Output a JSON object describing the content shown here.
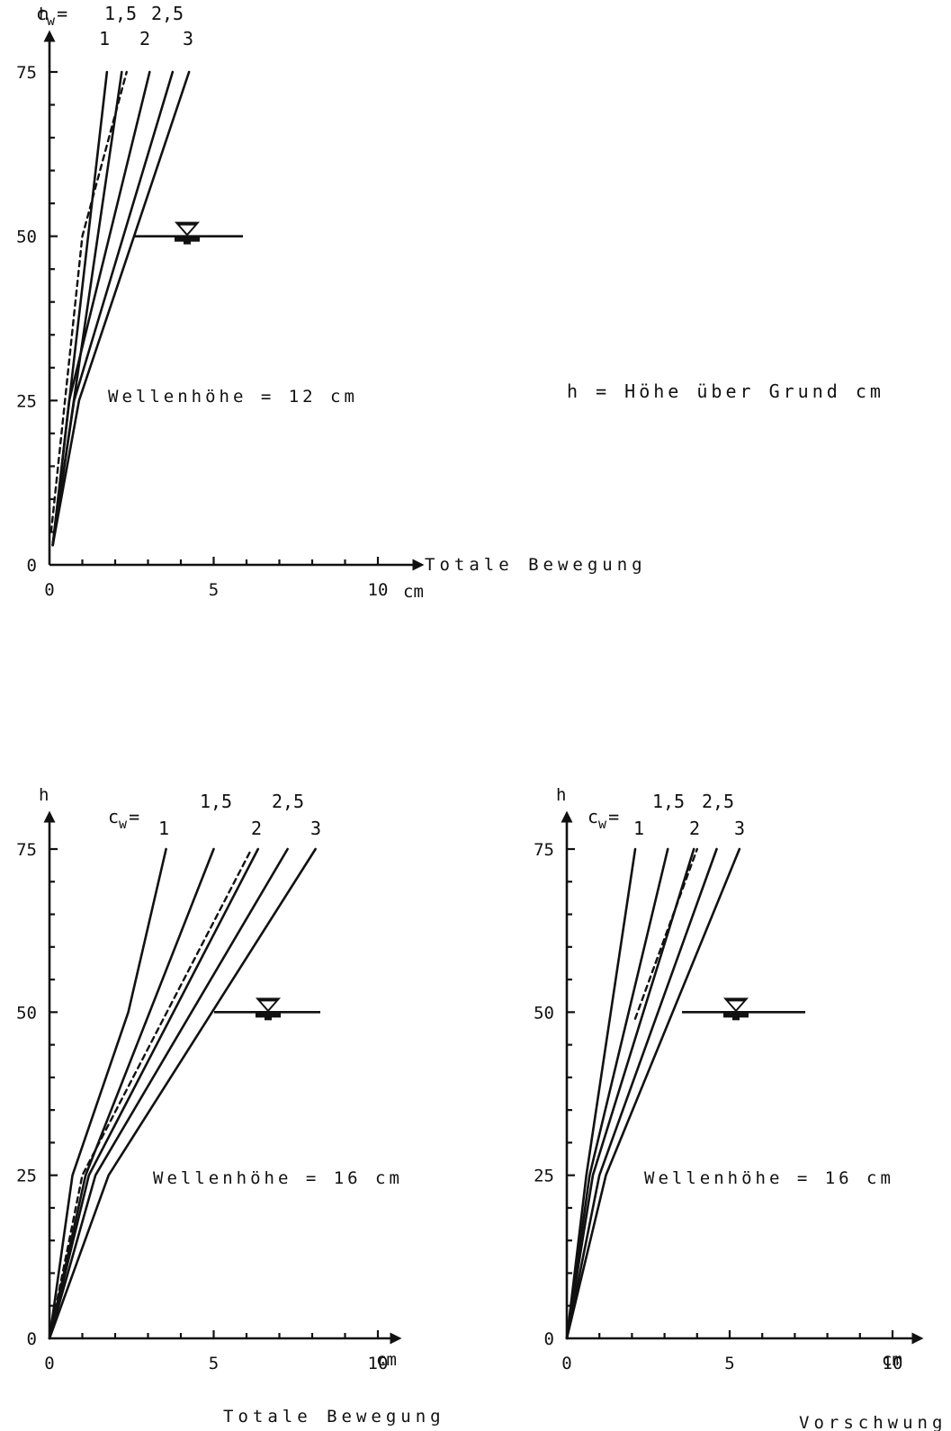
{
  "legend_note": "h = Höhe über Grund cm",
  "chart_data": [
    {
      "type": "line",
      "ylabel": "h",
      "xlabel": "Totale Bewegung",
      "x_unit": "cm",
      "xlim": [
        0,
        11
      ],
      "ylim": [
        0,
        77
      ],
      "xticks": [
        "0",
        "5",
        "10"
      ],
      "yticks": [
        "0",
        "25",
        "50",
        "75"
      ],
      "cw_symbol": "c",
      "cw_sub": "w",
      "cw_eq": "=",
      "annotation": "Wellenhöhe = 12 cm",
      "water_level": 50,
      "series": [
        {
          "name": "1",
          "style": "solid",
          "points": [
            [
              0.1,
              3
            ],
            [
              1.75,
              75
            ]
          ]
        },
        {
          "name": "1,5",
          "style": "dashed",
          "points": [
            [
              0.05,
              5
            ],
            [
              1.0,
              50
            ],
            [
              2.35,
              75
            ]
          ]
        },
        {
          "name": "1,5",
          "style": "solid",
          "points": [
            [
              0.1,
              3
            ],
            [
              2.2,
              75
            ]
          ]
        },
        {
          "name": "2",
          "style": "solid",
          "points": [
            [
              0.1,
              3
            ],
            [
              0.6,
              25
            ],
            [
              3.05,
              75
            ]
          ]
        },
        {
          "name": "2,5",
          "style": "solid",
          "points": [
            [
              0.1,
              3
            ],
            [
              0.75,
              25
            ],
            [
              3.75,
              75
            ]
          ]
        },
        {
          "name": "3",
          "style": "solid",
          "points": [
            [
              0.1,
              3
            ],
            [
              0.9,
              25
            ],
            [
              4.25,
              75
            ]
          ]
        }
      ]
    },
    {
      "type": "line",
      "ylabel": "h",
      "xlabel": "Totale Bewegung",
      "x_unit": "cm",
      "xlim": [
        0,
        11
      ],
      "ylim": [
        0,
        77
      ],
      "xticks": [
        "0",
        "5",
        "10"
      ],
      "yticks": [
        "0",
        "25",
        "50",
        "75"
      ],
      "cw_symbol": "c",
      "cw_sub": "w",
      "cw_eq": "=",
      "annotation": "Wellenhöhe = 16 cm",
      "water_level": 50,
      "series": [
        {
          "name": "1",
          "style": "solid",
          "points": [
            [
              0,
              0
            ],
            [
              0.7,
              25
            ],
            [
              2.4,
              50
            ],
            [
              3.55,
              75
            ]
          ]
        },
        {
          "name": "1,5",
          "style": "solid",
          "points": [
            [
              0,
              0
            ],
            [
              1.1,
              25
            ],
            [
              5.0,
              75
            ]
          ]
        },
        {
          "name": "2",
          "style": "dashed",
          "points": [
            [
              0,
              0
            ],
            [
              1.0,
              25
            ],
            [
              6.15,
              75
            ]
          ]
        },
        {
          "name": "2",
          "style": "solid",
          "points": [
            [
              0,
              0
            ],
            [
              1.2,
              25
            ],
            [
              6.35,
              75
            ]
          ]
        },
        {
          "name": "2,5",
          "style": "solid",
          "points": [
            [
              0,
              0
            ],
            [
              1.4,
              25
            ],
            [
              7.25,
              75
            ]
          ]
        },
        {
          "name": "3",
          "style": "solid",
          "points": [
            [
              0,
              0
            ],
            [
              1.8,
              25
            ],
            [
              8.1,
              75
            ]
          ]
        }
      ]
    },
    {
      "type": "line",
      "ylabel": "h",
      "xlabel": "Vorschwung",
      "x_unit": "cm",
      "xlim": [
        0,
        11
      ],
      "ylim": [
        0,
        77
      ],
      "xticks": [
        "0",
        "5",
        "10"
      ],
      "yticks": [
        "0",
        "25",
        "50",
        "75"
      ],
      "cw_symbol": "c",
      "cw_sub": "w",
      "cw_eq": "=",
      "annotation": "Wellenhöhe = 16 cm",
      "water_level": 50,
      "series": [
        {
          "name": "1",
          "style": "solid",
          "points": [
            [
              0,
              0
            ],
            [
              0.6,
              25
            ],
            [
              2.1,
              75
            ]
          ]
        },
        {
          "name": "1,5",
          "style": "dashed",
          "points": [
            [
              2.1,
              49
            ],
            [
              4.0,
              75
            ]
          ]
        },
        {
          "name": "1,5",
          "style": "solid",
          "points": [
            [
              0,
              0
            ],
            [
              0.7,
              25
            ],
            [
              3.1,
              75
            ]
          ]
        },
        {
          "name": "2",
          "style": "solid",
          "points": [
            [
              0,
              0
            ],
            [
              0.8,
              25
            ],
            [
              3.9,
              75
            ]
          ]
        },
        {
          "name": "2,5",
          "style": "solid",
          "points": [
            [
              0,
              0
            ],
            [
              1.0,
              25
            ],
            [
              4.6,
              75
            ]
          ]
        },
        {
          "name": "3",
          "style": "solid",
          "points": [
            [
              0,
              0
            ],
            [
              1.2,
              25
            ],
            [
              5.3,
              75
            ]
          ]
        }
      ]
    }
  ]
}
